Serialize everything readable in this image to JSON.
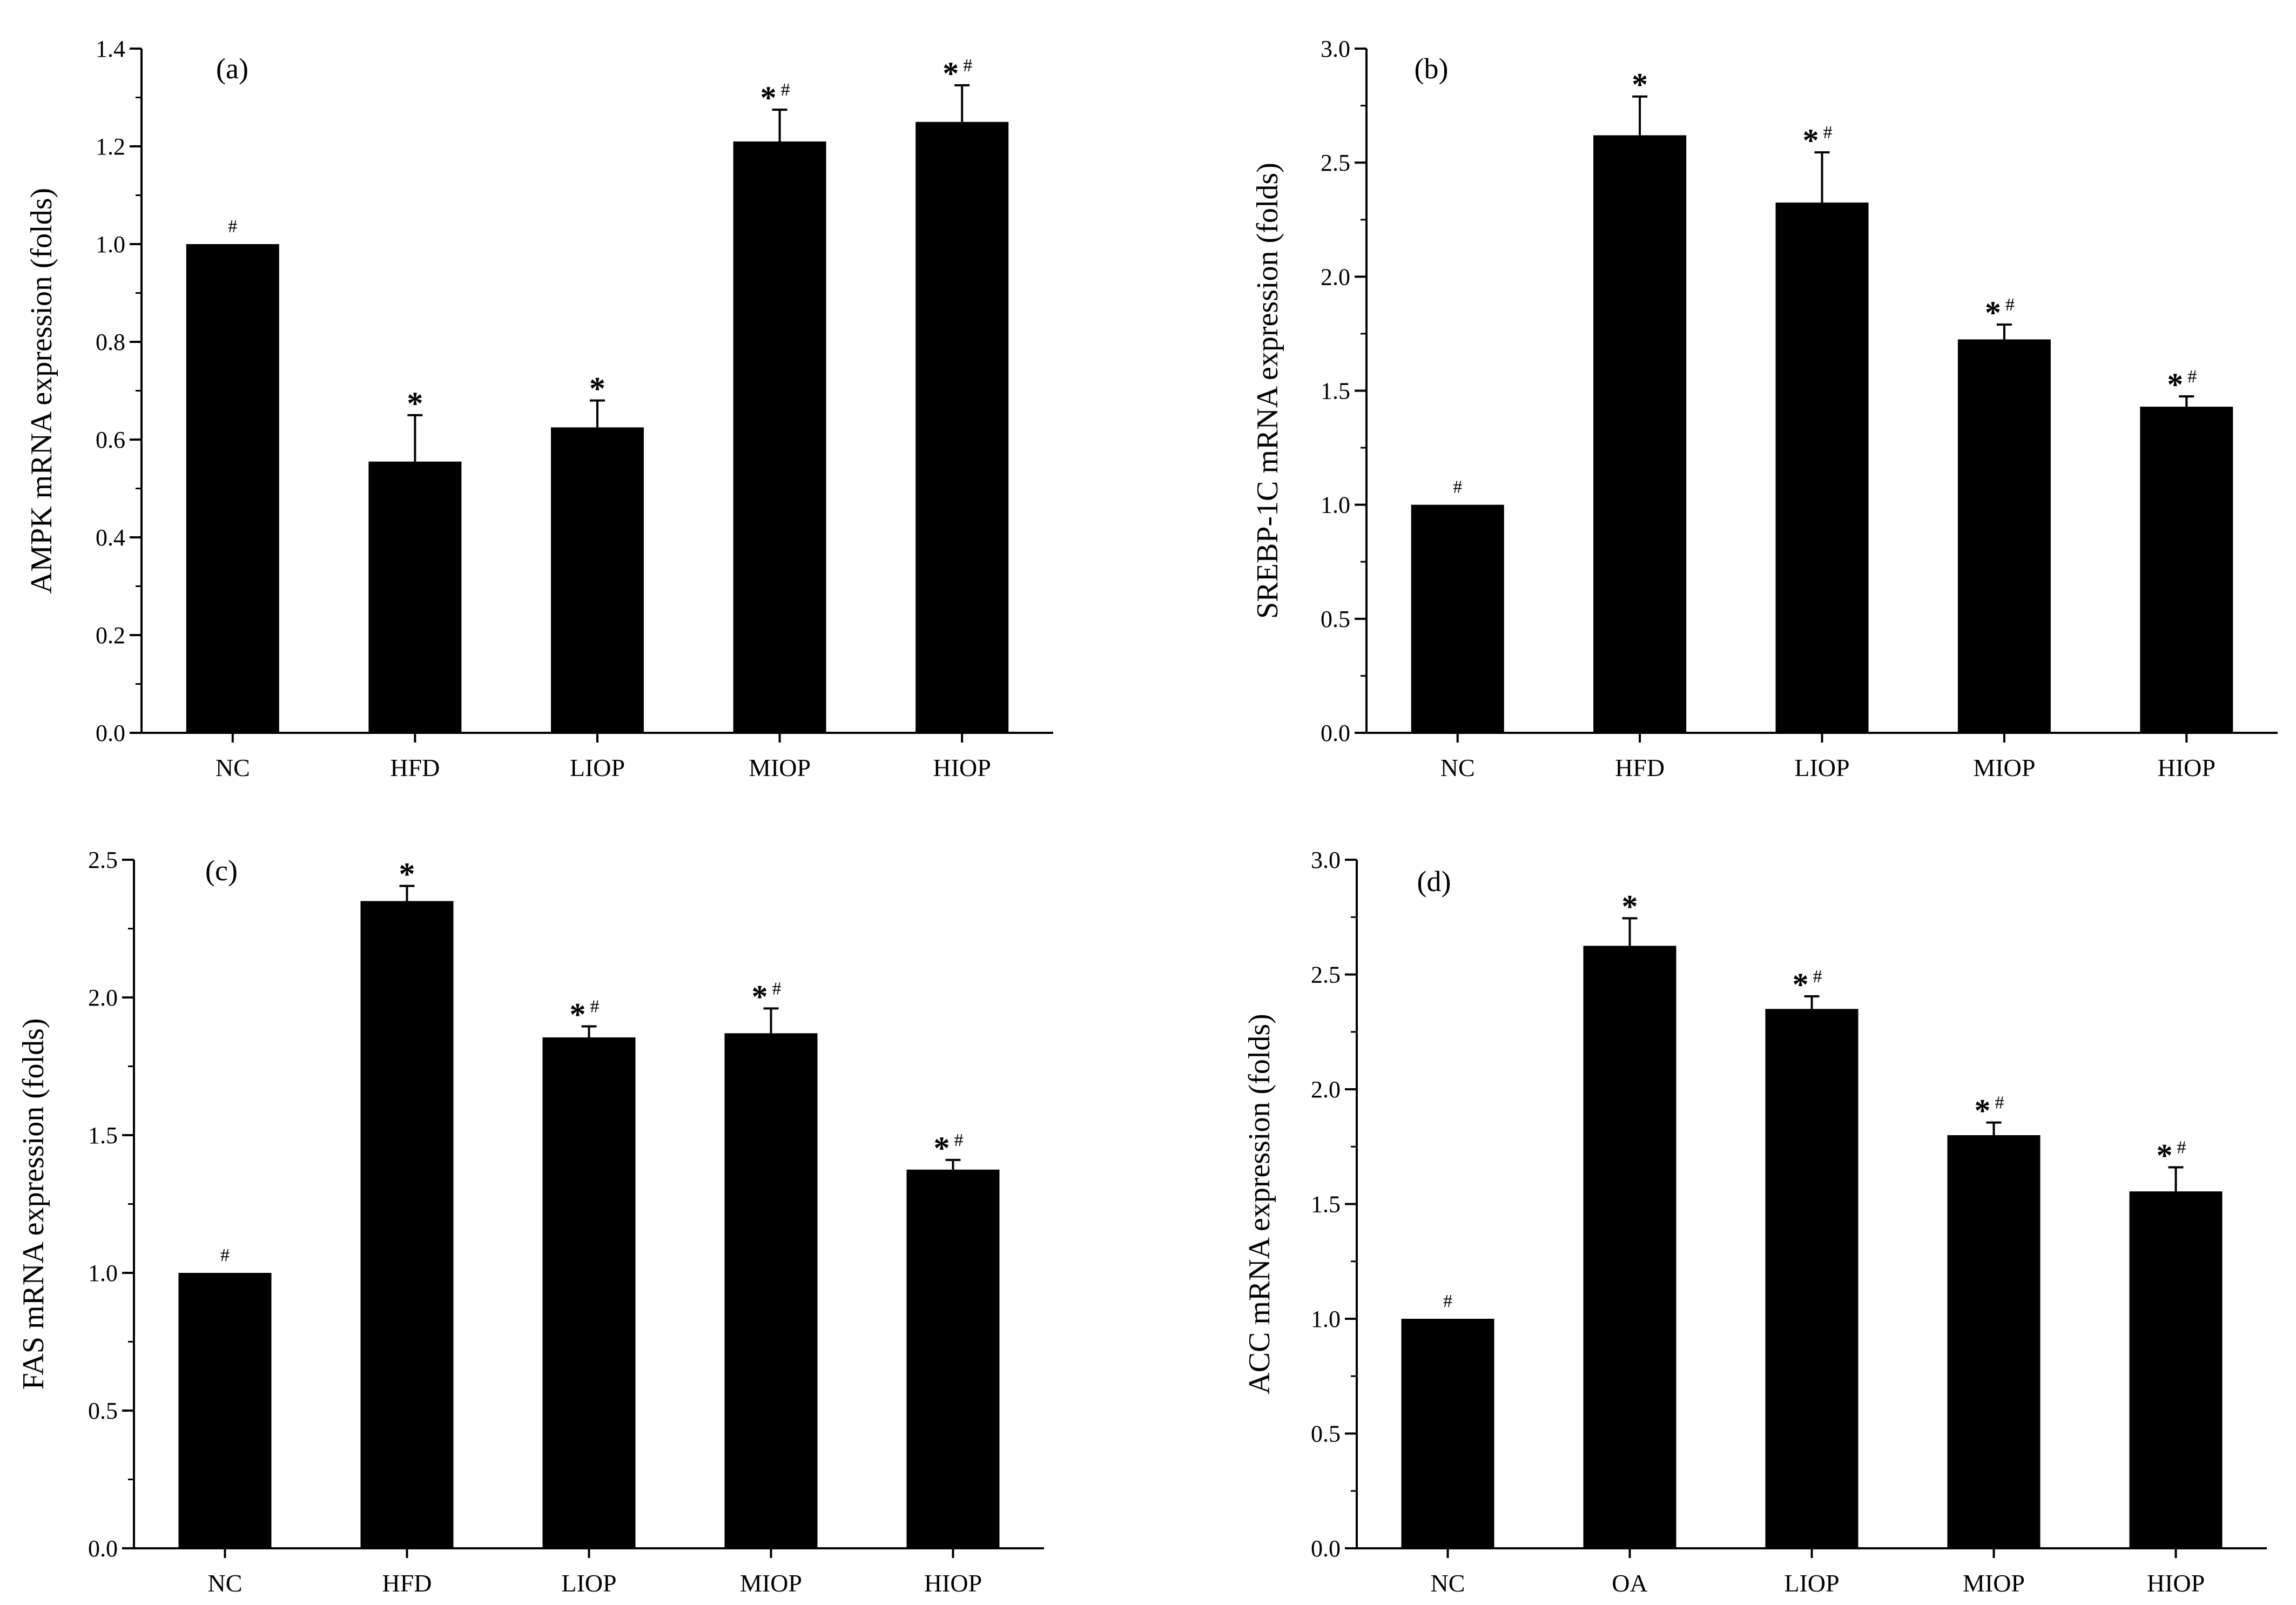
{
  "figure": {
    "significance_symbols": {
      "star": "*",
      "hash": "#"
    }
  },
  "chart_data": [
    {
      "type": "bar",
      "panel_label": "(a)",
      "ylabel": "AMPK mRNA expression (folds)",
      "categories": [
        "NC",
        "HFD",
        "LIOP",
        "MIOP",
        "HIOP"
      ],
      "values": [
        1.0,
        0.555,
        0.625,
        1.21,
        1.25
      ],
      "errors": [
        0.0,
        0.095,
        0.055,
        0.065,
        0.075
      ],
      "marks": [
        "#",
        "*",
        "*",
        "*#",
        "*#"
      ],
      "ylim": [
        0,
        1.4
      ],
      "major_ticks": [
        0.0,
        0.2,
        0.4,
        0.6,
        0.8,
        1.0,
        1.2,
        1.4
      ],
      "tick_labels": [
        "0.0",
        "0.2",
        "0.4",
        "0.6",
        "0.8",
        "1.0",
        "1.2",
        "1.4"
      ],
      "minor_step": 0.1,
      "bar_color": "#000000"
    },
    {
      "type": "bar",
      "panel_label": "(b)",
      "ylabel": "SREBP-1C mRNA expression (folds)",
      "categories": [
        "NC",
        "HFD",
        "LIOP",
        "MIOP",
        "HIOP"
      ],
      "values": [
        1.0,
        2.62,
        2.325,
        1.725,
        1.43
      ],
      "errors": [
        0.0,
        0.17,
        0.22,
        0.065,
        0.045
      ],
      "marks": [
        "#",
        "*",
        "*#",
        "*#",
        "*#"
      ],
      "ylim": [
        0,
        3.0
      ],
      "major_ticks": [
        0.0,
        0.5,
        1.0,
        1.5,
        2.0,
        2.5,
        3.0
      ],
      "tick_labels": [
        "0.0",
        "0.5",
        "1.0",
        "1.5",
        "2.0",
        "2.5",
        "3.0"
      ],
      "minor_step": 0.25,
      "bar_color": "#000000"
    },
    {
      "type": "bar",
      "panel_label": "(c)",
      "ylabel": "FAS  mRNA expression (folds)",
      "categories": [
        "NC",
        "HFD",
        "LIOP",
        "MIOP",
        "HIOP"
      ],
      "values": [
        1.0,
        2.35,
        1.855,
        1.87,
        1.375
      ],
      "errors": [
        0.0,
        0.055,
        0.04,
        0.09,
        0.035
      ],
      "marks": [
        "#",
        "*",
        "*#",
        "*#",
        "*#"
      ],
      "ylim": [
        0,
        2.5
      ],
      "major_ticks": [
        0.0,
        0.5,
        1.0,
        1.5,
        2.0,
        2.5
      ],
      "tick_labels": [
        "0.0",
        "0.5",
        "1.0",
        "1.5",
        "2.0",
        "2.5"
      ],
      "minor_step": 0.25,
      "bar_color": "#000000"
    },
    {
      "type": "bar",
      "panel_label": "(d)",
      "ylabel": "ACC mRNA expression (folds)",
      "categories": [
        "NC",
        "OA",
        "LIOP",
        "MIOP",
        "HIOP"
      ],
      "values": [
        1.0,
        2.625,
        2.35,
        1.8,
        1.555
      ],
      "errors": [
        0.0,
        0.12,
        0.055,
        0.055,
        0.105
      ],
      "marks": [
        "#",
        "*",
        "*#",
        "*#",
        "*#"
      ],
      "ylim": [
        0,
        3.0
      ],
      "major_ticks": [
        0.0,
        0.5,
        1.0,
        1.5,
        2.0,
        2.5,
        3.0
      ],
      "tick_labels": [
        "0.0",
        "0.5",
        "1.0",
        "1.5",
        "2.0",
        "2.5",
        "3.0"
      ],
      "minor_step": 0.25,
      "bar_color": "#000000"
    }
  ]
}
